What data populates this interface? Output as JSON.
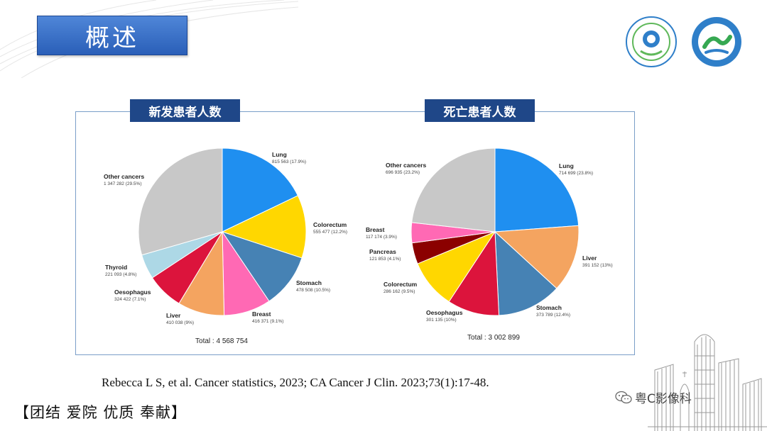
{
  "slide": {
    "title": "概述",
    "citation": "Rebecca L S, et al. Cancer statistics, 2023; CA Cancer J Clin. 2023;73(1):17-48.",
    "slogan": "【团结 爱院 优质 奉献】",
    "watermark": "粤C影像科"
  },
  "logos": {
    "left": "seal-logo-icon",
    "right": "hospital-logo-icon"
  },
  "chart_data": [
    {
      "type": "pie",
      "title": "新发患者人数",
      "total_label": "Total : 4 568 754",
      "slices": [
        {
          "name": "Lung",
          "value_label": "815 563 (17.9%)",
          "value": 17.9,
          "color": "#1f8ff0"
        },
        {
          "name": "Colorectum",
          "value_label": "555 477 (12.2%)",
          "value": 12.2,
          "color": "#ffd700"
        },
        {
          "name": "Stomach",
          "value_label": "478 508 (10.5%)",
          "value": 10.5,
          "color": "#4682b4"
        },
        {
          "name": "Breast",
          "value_label": "416 371 (9.1%)",
          "value": 9.1,
          "color": "#ff69b4"
        },
        {
          "name": "Liver",
          "value_label": "410 038 (9%)",
          "value": 9.0,
          "color": "#f4a460"
        },
        {
          "name": "Oesophagus",
          "value_label": "324 422 (7.1%)",
          "value": 7.1,
          "color": "#dc143c"
        },
        {
          "name": "Thyroid",
          "value_label": "221 093 (4.8%)",
          "value": 4.8,
          "color": "#add8e6"
        },
        {
          "name": "Other cancers",
          "value_label": "1 347 282 (29.5%)",
          "value": 29.5,
          "color": "#c8c8c8"
        }
      ]
    },
    {
      "type": "pie",
      "title": "死亡患者人数",
      "total_label": "Total : 3 002 899",
      "slices": [
        {
          "name": "Lung",
          "value_label": "714 699 (23.8%)",
          "value": 23.8,
          "color": "#1f8ff0"
        },
        {
          "name": "Liver",
          "value_label": "391 152 (13%)",
          "value": 13.0,
          "color": "#f4a460"
        },
        {
          "name": "Stomach",
          "value_label": "373 789 (12.4%)",
          "value": 12.4,
          "color": "#4682b4"
        },
        {
          "name": "Oesophagus",
          "value_label": "301 135 (10%)",
          "value": 10.0,
          "color": "#dc143c"
        },
        {
          "name": "Colorectum",
          "value_label": "286 162 (9.5%)",
          "value": 9.5,
          "color": "#ffd700"
        },
        {
          "name": "Pancreas",
          "value_label": "121 853 (4.1%)",
          "value": 4.1,
          "color": "#8b0000"
        },
        {
          "name": "Breast",
          "value_label": "117 174 (3.9%)",
          "value": 3.9,
          "color": "#ff69b4"
        },
        {
          "name": "Other cancers",
          "value_label": "696 935 (23.2%)",
          "value": 23.2,
          "color": "#c8c8c8"
        }
      ]
    }
  ]
}
